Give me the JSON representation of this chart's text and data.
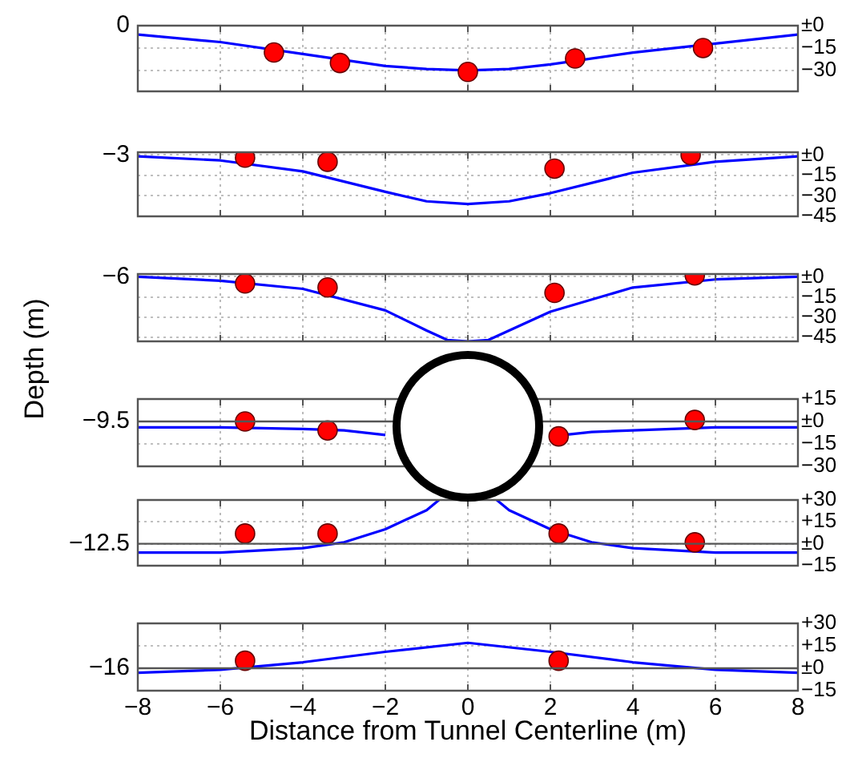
{
  "chart_data": [
    {
      "type": "line",
      "xlim": [
        -8,
        8
      ],
      "xticks": [
        -8,
        -6,
        -4,
        -2,
        0,
        2,
        4,
        6,
        8
      ],
      "y2lim": [
        -44,
        0
      ],
      "y2ticks": [
        {
          "value": 0,
          "label": "±0"
        },
        {
          "value": -15,
          "label": "−15"
        },
        {
          "value": -30,
          "label": "−30"
        }
      ],
      "grid": true,
      "tick_labels": "y",
      "annotations": [
        "0"
      ],
      "series": [
        {
          "type": "line",
          "axis": "y2",
          "marker": "none",
          "color": "#0000ff",
          "x": [
            -8,
            -6,
            -4,
            -2,
            -1,
            0,
            1,
            2,
            4,
            6,
            8
          ],
          "values": [
            -6,
            -11,
            -19,
            -27,
            -29,
            -30,
            -29,
            -26,
            -18,
            -12,
            -6
          ]
        },
        {
          "type": "scatter",
          "axis": "y2",
          "marker": "circle",
          "color": "#ff0000",
          "x": [
            -4.7,
            -3.1,
            0,
            2.6,
            5.7
          ],
          "values": [
            -18,
            -25,
            -31,
            -22,
            -15
          ]
        }
      ]
    },
    {
      "type": "line",
      "xlim": [
        -8,
        8
      ],
      "xticks": [
        -8,
        -6,
        -4,
        -2,
        0,
        2,
        4,
        6,
        8
      ],
      "y2lim": [
        -45,
        2
      ],
      "y2ticks": [
        {
          "value": 0,
          "label": "±0"
        },
        {
          "value": -15,
          "label": "−15"
        },
        {
          "value": -30,
          "label": "−30"
        },
        {
          "value": -45,
          "label": "−45"
        }
      ],
      "grid": true,
      "tick_labels": "y",
      "annotations": [
        "−3"
      ],
      "series": [
        {
          "type": "line",
          "axis": "y2",
          "marker": "none",
          "color": "#0000ff",
          "x": [
            -8,
            -6,
            -4,
            -2,
            -1,
            0,
            1,
            2,
            4,
            6,
            8
          ],
          "values": [
            -1,
            -4,
            -12,
            -27,
            -34,
            -36,
            -34,
            -28,
            -13,
            -5,
            -1
          ]
        },
        {
          "type": "scatter",
          "axis": "y2",
          "marker": "circle",
          "color": "#ff0000",
          "x": [
            -5.4,
            -3.4,
            2.1,
            5.4
          ],
          "values": [
            -2,
            -5,
            -10,
            0
          ]
        }
      ]
    },
    {
      "type": "line",
      "xlim": [
        -8,
        8
      ],
      "xticks": [
        -8,
        -6,
        -4,
        -2,
        0,
        2,
        4,
        6,
        8
      ],
      "y2lim": [
        -48,
        2
      ],
      "y2ticks": [
        {
          "value": 0,
          "label": "±0"
        },
        {
          "value": -15,
          "label": "−15"
        },
        {
          "value": -30,
          "label": "−30"
        },
        {
          "value": -45,
          "label": "−45"
        }
      ],
      "grid": true,
      "tick_labels": "y",
      "annotations": [
        "−6"
      ],
      "series": [
        {
          "type": "line",
          "axis": "y2",
          "marker": "none",
          "color": "#0000ff",
          "x": [
            -8,
            -6,
            -4,
            -2,
            -1,
            -0.5,
            0,
            0.5,
            1,
            2,
            4,
            6,
            8
          ],
          "values": [
            0,
            -3,
            -9,
            -25,
            -40,
            -47,
            -48,
            -47,
            -40,
            -26,
            -8,
            -2,
            0
          ]
        },
        {
          "type": "scatter",
          "axis": "y2",
          "marker": "circle",
          "color": "#ff0000",
          "x": [
            -5.4,
            -3.4,
            2.1,
            5.5
          ],
          "values": [
            -5,
            -8,
            -12,
            1
          ]
        }
      ]
    },
    {
      "type": "line",
      "xlim": [
        -8,
        8
      ],
      "xticks": [
        -8,
        -6,
        -4,
        -2,
        0,
        2,
        4,
        6,
        8
      ],
      "y2lim": [
        -30,
        15
      ],
      "y2ticks": [
        {
          "value": 15,
          "label": "+15"
        },
        {
          "value": 0,
          "label": "±0"
        },
        {
          "value": -15,
          "label": "−15"
        },
        {
          "value": -30,
          "label": "−30"
        }
      ],
      "grid": true,
      "tick_labels": "y",
      "ref_lines": [
        {
          "axis": "y2",
          "value": 0
        }
      ],
      "annotations": [
        "−9.5"
      ],
      "series": [
        {
          "type": "line",
          "axis": "y2",
          "marker": "none",
          "color": "#0000ff",
          "x": [
            -8,
            -6,
            -4,
            -3,
            -2,
            0,
            2,
            3,
            4,
            6,
            8
          ],
          "values": [
            -4,
            -4,
            -5,
            -6,
            -9,
            null,
            -10,
            -7,
            -6,
            -4,
            -4
          ]
        },
        {
          "type": "scatter",
          "axis": "y2",
          "marker": "circle",
          "color": "#ff0000",
          "x": [
            -5.4,
            -3.4,
            2.2,
            5.5
          ],
          "values": [
            0,
            -6,
            -10,
            1
          ]
        }
      ]
    },
    {
      "type": "line",
      "xlim": [
        -8,
        8
      ],
      "xticks": [
        -8,
        -6,
        -4,
        -2,
        0,
        2,
        4,
        6,
        8
      ],
      "y2lim": [
        -15,
        30
      ],
      "y2ticks": [
        {
          "value": 30,
          "label": "+30"
        },
        {
          "value": 15,
          "label": "+15"
        },
        {
          "value": 0,
          "label": "±0"
        },
        {
          "value": -15,
          "label": "−15"
        }
      ],
      "grid": true,
      "tick_labels": "y",
      "ref_lines": [
        {
          "axis": "y2",
          "value": 0
        }
      ],
      "annotations": [
        "−12.5"
      ],
      "series": [
        {
          "type": "line",
          "axis": "y2",
          "marker": "none",
          "color": "#0000ff",
          "x": [
            -8,
            -6,
            -4,
            -3,
            -2,
            -1,
            -0.7,
            0,
            0.7,
            1,
            2,
            3,
            4,
            6,
            8
          ],
          "values": [
            -6,
            -6,
            -3,
            1,
            10,
            23,
            30,
            null,
            30,
            23,
            10,
            1,
            -3,
            -6,
            -6
          ]
        },
        {
          "type": "scatter",
          "axis": "y2",
          "marker": "circle",
          "color": "#ff0000",
          "x": [
            -5.4,
            -3.4,
            2.2,
            5.5
          ],
          "values": [
            7,
            7,
            7,
            1
          ]
        }
      ]
    },
    {
      "type": "line",
      "xlim": [
        -8,
        8
      ],
      "xticks": [
        {
          "value": -8,
          "label": "−8"
        },
        {
          "value": -6,
          "label": "−6"
        },
        {
          "value": -4,
          "label": "−4"
        },
        {
          "value": -2,
          "label": "−2"
        },
        0,
        2,
        4,
        6,
        8
      ],
      "y2lim": [
        -15,
        30
      ],
      "y2ticks": [
        {
          "value": 30,
          "label": "+30"
        },
        {
          "value": 15,
          "label": "+15"
        },
        {
          "value": 0,
          "label": "±0"
        },
        {
          "value": -15,
          "label": "−15"
        }
      ],
      "grid": true,
      "ref_lines": [
        {
          "axis": "y2",
          "value": 0
        }
      ],
      "annotations": [
        "−16"
      ],
      "xlabel": "Distance from Tunnel Centerline (m)",
      "ylabel": "Depth (m)",
      "series": [
        {
          "type": "line",
          "axis": "y2",
          "marker": "none",
          "color": "#0000ff",
          "x": [
            -8,
            -6,
            -4,
            -2,
            0,
            2,
            4,
            6,
            8
          ],
          "values": [
            -3,
            -1,
            4,
            11,
            17,
            11,
            4,
            -1,
            -3
          ]
        },
        {
          "type": "scatter",
          "axis": "y2",
          "marker": "circle",
          "color": "#ff0000",
          "x": [
            -5.4,
            2.2
          ],
          "values": [
            5,
            5
          ]
        }
      ]
    }
  ]
}
